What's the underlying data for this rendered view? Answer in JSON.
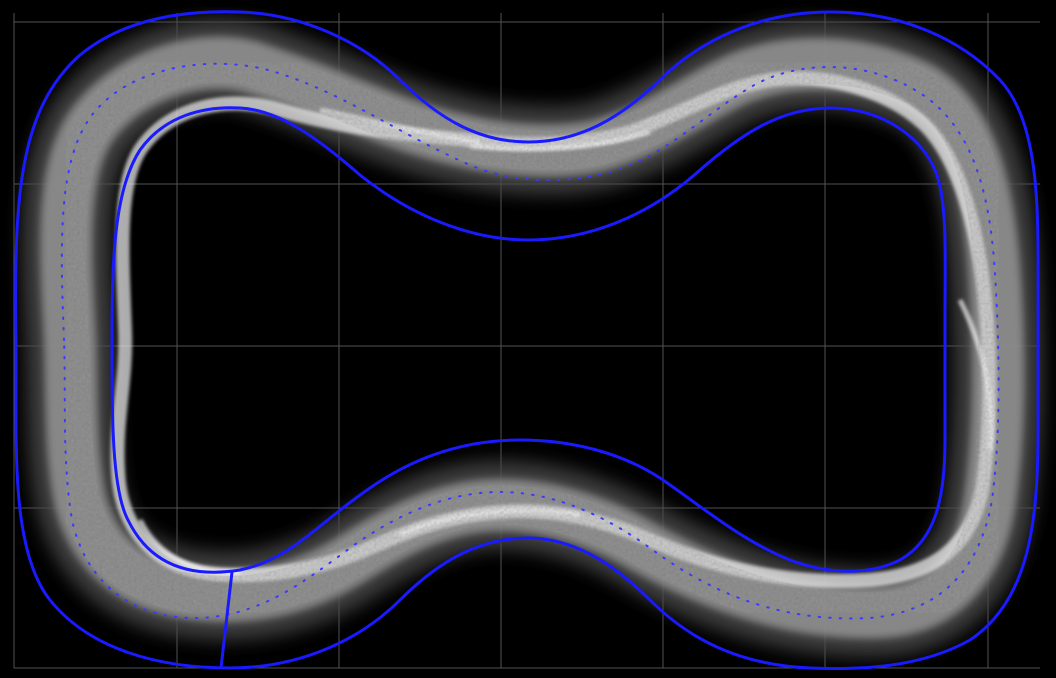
{
  "view": {
    "background_color": "#000000",
    "grid_color": "#6e6e6e",
    "boundary_color": "#1a1aff",
    "centerline_color": "#3a3aff",
    "density_color": "#ffffff",
    "grid_visible": true,
    "centerline_style": "dotted"
  }
}
